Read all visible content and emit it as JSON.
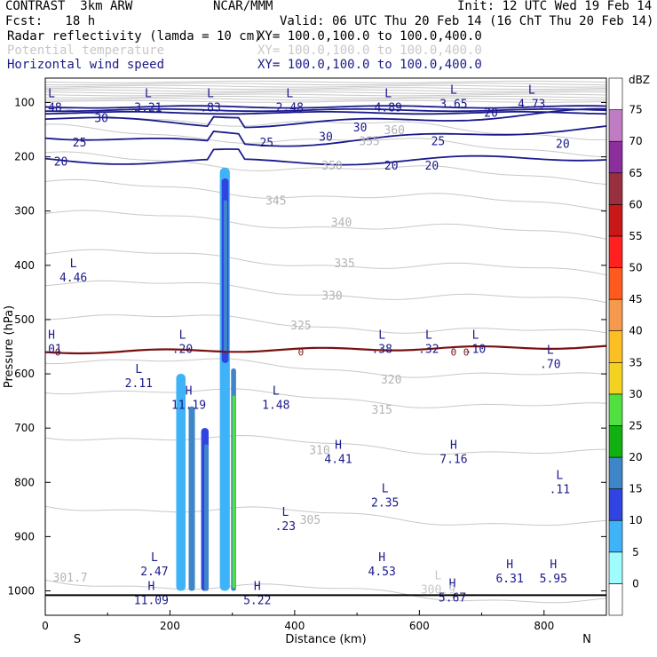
{
  "header": {
    "model": "CONTRAST  3km ARW",
    "org": "NCAR/MMM",
    "init": "Init: 12 UTC Wed 19 Feb 14",
    "fcst": "Fcst:   18 h",
    "valid": "Valid: 06 UTC Thu 20 Feb 14 (16 ChT Thu 20 Feb 14)",
    "fields": [
      {
        "name": "Radar reflectivity (lamda = 10 cm)",
        "xy": "XY= 100.0,100.0 to 100.0,400.0",
        "color": "#000000"
      },
      {
        "name": "Potential temperature",
        "xy": "XY= 100.0,100.0 to 100.0,400.0",
        "color": "#c8c8c8"
      },
      {
        "name": "Horizontal wind speed",
        "xy": "XY= 100.0,100.0 to 100.0,400.0",
        "color": "#1a1a8c"
      }
    ]
  },
  "chart_data": {
    "type": "cross-section",
    "xlabel": "Distance (km)",
    "ylabel": "Pressure (hPa)",
    "xlim": [
      0,
      900
    ],
    "ylim": [
      1045,
      55
    ],
    "x_ticks": [
      0,
      200,
      400,
      600,
      800
    ],
    "y_ticks": [
      100,
      200,
      300,
      400,
      500,
      600,
      700,
      800,
      900,
      1000
    ],
    "endpoints": {
      "left": "S",
      "right": "N"
    },
    "colorbar": {
      "unit": "dBZ",
      "levels": [
        "0",
        "5",
        "10",
        "15",
        "20",
        "25",
        "30",
        "35",
        "40",
        "45",
        "50",
        "55",
        "60",
        "65",
        "70",
        "75"
      ],
      "colors": [
        "#ffffff",
        "#9ffcff",
        "#3fb3f7",
        "#2f44e0",
        "#3f86c9",
        "#10b010",
        "#50e040",
        "#f3d31f",
        "#fbbf24",
        "#f59a4c",
        "#ff5a1e",
        "#ff2020",
        "#c81818",
        "#98303f",
        "#8c2f9c",
        "#c07cc2",
        "#ffffff"
      ]
    },
    "reflectivity": {
      "cells": [
        {
          "x": [
            280,
            296
          ],
          "p": [
            220,
            1000
          ],
          "dbz": 5
        },
        {
          "x": [
            283,
            294
          ],
          "p": [
            240,
            580
          ],
          "dbz": 10
        },
        {
          "x": [
            286,
            292
          ],
          "p": [
            280,
            560
          ],
          "dbz": 15
        },
        {
          "x": [
            298,
            306
          ],
          "p": [
            590,
            1000
          ],
          "dbz": 15
        },
        {
          "x": [
            300,
            305
          ],
          "p": [
            640,
            995
          ],
          "dbz": 25
        },
        {
          "x": [
            210,
            225
          ],
          "p": [
            600,
            1000
          ],
          "dbz": 5
        },
        {
          "x": [
            230,
            240
          ],
          "p": [
            660,
            1000
          ],
          "dbz": 15
        },
        {
          "x": [
            250,
            262
          ],
          "p": [
            700,
            1000
          ],
          "dbz": 10
        },
        {
          "x": [
            255,
            262
          ],
          "p": [
            730,
            1000
          ],
          "dbz": 15
        }
      ]
    },
    "theta_contours": [
      {
        "label": "301.7",
        "x": 40,
        "p": 975
      },
      {
        "label": "305",
        "x": 425,
        "p": 868
      },
      {
        "label": "310",
        "x": 440,
        "p": 740
      },
      {
        "label": "315",
        "x": 540,
        "p": 665
      },
      {
        "label": "320",
        "x": 555,
        "p": 610
      },
      {
        "label": "325",
        "x": 410,
        "p": 510
      },
      {
        "label": "330",
        "x": 460,
        "p": 455
      },
      {
        "label": "335",
        "x": 480,
        "p": 395
      },
      {
        "label": "340",
        "x": 475,
        "p": 320
      },
      {
        "label": "345",
        "x": 370,
        "p": 280
      },
      {
        "label": "350",
        "x": 460,
        "p": 215
      },
      {
        "label": "355",
        "x": 520,
        "p": 170
      },
      {
        "label": "360",
        "x": 560,
        "p": 150
      }
    ],
    "wind_contours": [
      {
        "level": 20,
        "label": "20"
      },
      {
        "level": 25,
        "label": "25"
      },
      {
        "level": 30,
        "label": "30"
      }
    ],
    "extrema": [
      {
        "type": "L",
        "value": ".48",
        "x": 10,
        "p": 97
      },
      {
        "type": "L",
        "value": "3.21",
        "x": 165,
        "p": 97
      },
      {
        "type": "L",
        "value": ".83",
        "x": 265,
        "p": 97
      },
      {
        "type": "L",
        "value": "2.48",
        "x": 392,
        "p": 97
      },
      {
        "type": "L",
        "value": "4.89",
        "x": 550,
        "p": 97
      },
      {
        "type": "L",
        "value": "3.65",
        "x": 655,
        "p": 90
      },
      {
        "type": "L",
        "value": "4.73",
        "x": 780,
        "p": 90
      },
      {
        "type": "L",
        "value": "4.46",
        "x": 45,
        "p": 410
      },
      {
        "type": "H",
        "value": ".01",
        "x": 10,
        "p": 542
      },
      {
        "type": "L",
        "value": ".20",
        "x": 220,
        "p": 542
      },
      {
        "type": "L",
        "value": ".38",
        "x": 540,
        "p": 542
      },
      {
        "type": "L",
        "value": ".32",
        "x": 615,
        "p": 542
      },
      {
        "type": "L",
        "value": ".10",
        "x": 690,
        "p": 542
      },
      {
        "type": "L",
        "value": ".70",
        "x": 810,
        "p": 570
      },
      {
        "type": "L",
        "value": "2.11",
        "x": 150,
        "p": 605
      },
      {
        "type": "H",
        "value": "11.19",
        "x": 230,
        "p": 645
      },
      {
        "type": "L",
        "value": "1.48",
        "x": 370,
        "p": 645
      },
      {
        "type": "H",
        "value": "4.41",
        "x": 470,
        "p": 745
      },
      {
        "type": "H",
        "value": "7.16",
        "x": 655,
        "p": 745
      },
      {
        "type": "L",
        "value": ".11",
        "x": 825,
        "p": 800
      },
      {
        "type": "L",
        "value": "2.35",
        "x": 545,
        "p": 825
      },
      {
        "type": "L",
        "value": ".23",
        "x": 385,
        "p": 868
      },
      {
        "type": "L",
        "value": "2.47",
        "x": 175,
        "p": 952
      },
      {
        "type": "H",
        "value": "4.53",
        "x": 540,
        "p": 952
      },
      {
        "type": "H",
        "value": "6.31",
        "x": 745,
        "p": 965
      },
      {
        "type": "H",
        "value": "5.95",
        "x": 815,
        "p": 965
      },
      {
        "type": "H",
        "value": "11.09",
        "x": 170,
        "p": 1005
      },
      {
        "type": "H",
        "value": "5.22",
        "x": 340,
        "p": 1005
      },
      {
        "type": "H",
        "value": "5.67",
        "x": 653,
        "p": 1000
      },
      {
        "type": "L",
        "value": "300.9",
        "x": 630,
        "p": 985
      }
    ],
    "zero_line": {
      "label": "0",
      "p": 560
    }
  }
}
